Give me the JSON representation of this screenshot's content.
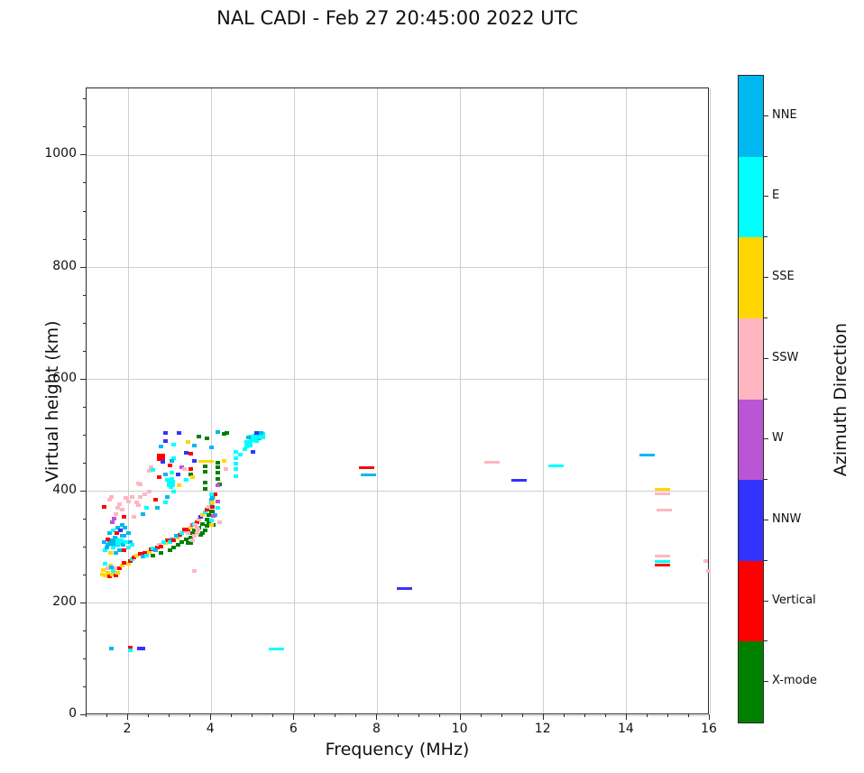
{
  "title": "NAL CADI - Feb 27 20:45:00 2022 UTC",
  "chart_data": {
    "type": "scatter",
    "title": "NAL CADI - Feb 27 20:45:00 2022 UTC",
    "xlabel": "Frequency (MHz)",
    "ylabel": "Virtual height (km)",
    "xlim": [
      1,
      16
    ],
    "ylim": [
      0,
      1120
    ],
    "xticks": [
      2,
      4,
      6,
      8,
      10,
      12,
      14,
      16
    ],
    "yticks": [
      0,
      200,
      400,
      600,
      800,
      1000
    ],
    "x_minor_step": 0.5,
    "y_minor_step": 50,
    "grid": true,
    "legend_position": "right-colorbar",
    "colorbar": {
      "label": "Azimuth Direction",
      "segments": [
        {
          "label": "NNE",
          "color": "#00B8F0"
        },
        {
          "label": "E",
          "color": "#00FFFF"
        },
        {
          "label": "SSE",
          "color": "#FFD700"
        },
        {
          "label": "SSW",
          "color": "#FFB6C1"
        },
        {
          "label": "W",
          "color": "#BA55D3"
        },
        {
          "label": "NNW",
          "color": "#3333FF"
        },
        {
          "label": "Vertical",
          "color": "#FF0000"
        },
        {
          "label": "X-mode",
          "color": "#008000"
        }
      ]
    },
    "points": [
      [
        1.59,
        119,
        "NNE"
      ],
      [
        2.05,
        121,
        "Vertical"
      ],
      [
        2.05,
        116,
        "E"
      ],
      [
        2.26,
        120,
        "NNW"
      ],
      [
        2.36,
        120,
        "NNW"
      ],
      [
        5.58,
        119,
        "E",
        "w"
      ],
      [
        1.38,
        252,
        "SSE"
      ],
      [
        1.45,
        250,
        "SSE"
      ],
      [
        1.5,
        255,
        "SSE"
      ],
      [
        1.55,
        248,
        "Vertical"
      ],
      [
        1.62,
        252,
        "SSE"
      ],
      [
        1.65,
        258,
        "E"
      ],
      [
        1.5,
        263,
        "SSW"
      ],
      [
        1.57,
        268,
        "SSE"
      ],
      [
        1.7,
        250,
        "Vertical"
      ],
      [
        1.45,
        270,
        "E"
      ],
      [
        1.6,
        265,
        "NNE"
      ],
      [
        1.75,
        255,
        "SSE"
      ],
      [
        1.7,
        262,
        "SSW"
      ],
      [
        1.4,
        260,
        "SSE"
      ],
      [
        1.42,
        310,
        "NNE"
      ],
      [
        1.45,
        295,
        "E"
      ],
      [
        1.48,
        300,
        "NNE"
      ],
      [
        1.52,
        305,
        "NNE"
      ],
      [
        1.55,
        325,
        "NNE"
      ],
      [
        1.57,
        290,
        "SSE"
      ],
      [
        1.6,
        310,
        "NNE",
        "b"
      ],
      [
        1.62,
        345,
        "W"
      ],
      [
        1.65,
        300,
        "E"
      ],
      [
        1.65,
        330,
        "E"
      ],
      [
        1.68,
        318,
        "NNE"
      ],
      [
        1.7,
        290,
        "NNE"
      ],
      [
        1.7,
        315,
        "NNE"
      ],
      [
        1.72,
        325,
        "Vertical"
      ],
      [
        1.75,
        305,
        "NNE"
      ],
      [
        1.75,
        335,
        "NNE"
      ],
      [
        1.8,
        295,
        "NNE"
      ],
      [
        1.8,
        310,
        "E",
        "b"
      ],
      [
        1.82,
        330,
        "NNW"
      ],
      [
        1.85,
        320,
        "NNE"
      ],
      [
        1.85,
        340,
        "NNE"
      ],
      [
        1.88,
        305,
        "NNE"
      ],
      [
        1.9,
        295,
        "Vertical"
      ],
      [
        1.9,
        320,
        "NNE"
      ],
      [
        1.92,
        335,
        "NNE"
      ],
      [
        1.95,
        310,
        "E"
      ],
      [
        2.0,
        300,
        "E"
      ],
      [
        2.0,
        325,
        "NNE"
      ],
      [
        1.5,
        315,
        "Vertical"
      ],
      [
        2.05,
        310,
        "NNE"
      ],
      [
        2.1,
        305,
        "E"
      ],
      [
        1.43,
        372,
        "Vertical"
      ],
      [
        1.55,
        385,
        "SSW"
      ],
      [
        1.6,
        390,
        "SSW"
      ],
      [
        1.75,
        370,
        "SSW"
      ],
      [
        1.8,
        377,
        "SSW"
      ],
      [
        1.85,
        368,
        "SSW"
      ],
      [
        1.7,
        360,
        "SSW"
      ],
      [
        1.66,
        352,
        "W"
      ],
      [
        1.9,
        355,
        "Vertical"
      ],
      [
        1.95,
        388,
        "SSW"
      ],
      [
        2.0,
        382,
        "SSW"
      ],
      [
        1.8,
        262,
        "Vertical"
      ],
      [
        1.85,
        268,
        "SSE"
      ],
      [
        1.9,
        272,
        "Vertical"
      ],
      [
        2.0,
        270,
        "SSE"
      ],
      [
        2.05,
        276,
        "Vertical"
      ],
      [
        2.1,
        278,
        "E"
      ],
      [
        2.15,
        282,
        "Vertical"
      ],
      [
        2.2,
        285,
        "SSE"
      ],
      [
        2.3,
        288,
        "Vertical"
      ],
      [
        2.35,
        284,
        "NNE"
      ],
      [
        2.4,
        290,
        "Vertical"
      ],
      [
        2.5,
        292,
        "SSE"
      ],
      [
        2.55,
        296,
        "Vertical"
      ],
      [
        2.6,
        298,
        "E"
      ],
      [
        2.7,
        300,
        "Vertical"
      ],
      [
        2.75,
        305,
        "SSW"
      ],
      [
        2.8,
        302,
        "Vertical"
      ],
      [
        2.9,
        308,
        "SSE"
      ],
      [
        2.95,
        312,
        "Vertical"
      ],
      [
        3.0,
        310,
        "E"
      ],
      [
        3.05,
        315,
        "NNE"
      ],
      [
        3.1,
        312,
        "Vertical"
      ],
      [
        3.2,
        318,
        "SSE"
      ],
      [
        3.25,
        322,
        "Vertical"
      ],
      [
        3.3,
        325,
        "E"
      ],
      [
        3.4,
        328,
        "SSW"
      ],
      [
        3.45,
        332,
        "Vertical"
      ],
      [
        3.5,
        335,
        "SSE"
      ],
      [
        3.55,
        340,
        "W"
      ],
      [
        3.6,
        342,
        "E"
      ],
      [
        3.65,
        345,
        "Vertical"
      ],
      [
        3.7,
        350,
        "SSW"
      ],
      [
        3.75,
        355,
        "NNW"
      ],
      [
        3.8,
        358,
        "SSE"
      ],
      [
        3.85,
        362,
        "E"
      ],
      [
        3.9,
        368,
        "Vertical"
      ],
      [
        3.95,
        372,
        "SSW"
      ],
      [
        4.0,
        378,
        "E"
      ],
      [
        4.0,
        385,
        "NNE"
      ],
      [
        4.05,
        390,
        "SSE"
      ],
      [
        4.1,
        395,
        "Vertical"
      ],
      [
        4.1,
        358,
        "NNE"
      ],
      [
        4.15,
        382,
        "W"
      ],
      [
        4.15,
        370,
        "E"
      ],
      [
        4.2,
        345,
        "SSW"
      ],
      [
        2.45,
        285,
        "E"
      ],
      [
        2.65,
        295,
        "NNE"
      ],
      [
        2.85,
        310,
        "E"
      ],
      [
        3.15,
        320,
        "NNE"
      ],
      [
        3.35,
        332,
        "Vertical"
      ],
      [
        2.6,
        285,
        "X-mode"
      ],
      [
        2.8,
        290,
        "X-mode"
      ],
      [
        3.0,
        295,
        "X-mode"
      ],
      [
        3.1,
        300,
        "X-mode"
      ],
      [
        3.2,
        305,
        "X-mode"
      ],
      [
        3.3,
        310,
        "X-mode"
      ],
      [
        3.45,
        308,
        "X-mode"
      ],
      [
        3.4,
        315,
        "X-mode"
      ],
      [
        3.5,
        318,
        "X-mode"
      ],
      [
        3.55,
        325,
        "X-mode"
      ],
      [
        3.6,
        330,
        "X-mode"
      ],
      [
        3.7,
        335,
        "X-mode"
      ],
      [
        3.75,
        322,
        "X-mode"
      ],
      [
        3.8,
        342,
        "X-mode"
      ],
      [
        3.85,
        330,
        "X-mode"
      ],
      [
        3.9,
        350,
        "X-mode"
      ],
      [
        3.95,
        358,
        "X-mode"
      ],
      [
        4.0,
        365,
        "X-mode"
      ],
      [
        4.05,
        340,
        "X-mode"
      ],
      [
        3.5,
        308,
        "X-mode"
      ],
      [
        3.9,
        338,
        "X-mode"
      ],
      [
        3.8,
        326,
        "X-mode"
      ],
      [
        3.95,
        345,
        "X-mode"
      ],
      [
        3.65,
        335,
        "SSW"
      ],
      [
        3.65,
        325,
        "SSW"
      ],
      [
        3.6,
        320,
        "SSW"
      ],
      [
        3.45,
        326,
        "SSW"
      ],
      [
        3.6,
        258,
        "SSW"
      ],
      [
        3.55,
        312,
        "SSW"
      ],
      [
        2.2,
        380,
        "SSW"
      ],
      [
        2.25,
        375,
        "SSW"
      ],
      [
        2.3,
        390,
        "SSW"
      ],
      [
        2.4,
        395,
        "SSW"
      ],
      [
        2.5,
        400,
        "SSW"
      ],
      [
        2.5,
        437,
        "SSW"
      ],
      [
        2.55,
        443,
        "SSW"
      ],
      [
        2.6,
        439,
        "E"
      ],
      [
        2.24,
        414,
        "SSW"
      ],
      [
        2.3,
        412,
        "SSW"
      ],
      [
        2.75,
        426,
        "Vertical"
      ],
      [
        2.8,
        461,
        "Vertical",
        "b"
      ],
      [
        2.83,
        453,
        "NNW"
      ],
      [
        3.0,
        447,
        "Vertical"
      ],
      [
        3.03,
        407,
        "E"
      ],
      [
        3.03,
        414,
        "E",
        "b"
      ],
      [
        3.05,
        434,
        "E"
      ],
      [
        3.05,
        422,
        "E"
      ],
      [
        3.1,
        400,
        "E"
      ],
      [
        3.23,
        411,
        "SSE"
      ],
      [
        3.3,
        443,
        "W"
      ],
      [
        3.35,
        440,
        "SSW"
      ],
      [
        3.2,
        430,
        "NNW"
      ],
      [
        3.4,
        420,
        "E"
      ],
      [
        3.5,
        430,
        "X-mode"
      ],
      [
        3.5,
        440,
        "Vertical"
      ],
      [
        3.55,
        425,
        "SSE"
      ],
      [
        2.9,
        380,
        "E"
      ],
      [
        2.95,
        390,
        "NNE"
      ],
      [
        2.7,
        370,
        "NNE"
      ],
      [
        2.65,
        385,
        "Vertical"
      ],
      [
        2.45,
        370,
        "E"
      ],
      [
        2.35,
        360,
        "NNE"
      ],
      [
        2.15,
        355,
        "SSW"
      ],
      [
        2.1,
        390,
        "SSW"
      ],
      [
        2.9,
        430,
        "NNE"
      ],
      [
        2.95,
        420,
        "E"
      ],
      [
        2.9,
        505,
        "NNW"
      ],
      [
        3.23,
        505,
        "NNW"
      ],
      [
        2.9,
        490,
        "NNW"
      ],
      [
        3.1,
        484,
        "E"
      ],
      [
        3.45,
        489,
        "SSE"
      ],
      [
        3.4,
        469,
        "NNW"
      ],
      [
        3.6,
        482,
        "NNE"
      ],
      [
        3.7,
        498,
        "X-mode"
      ],
      [
        3.9,
        495,
        "X-mode"
      ],
      [
        4.15,
        506,
        "NNE"
      ],
      [
        4.3,
        503,
        "X-mode"
      ],
      [
        4.38,
        505,
        "X-mode"
      ],
      [
        4.0,
        478,
        "NNE"
      ],
      [
        4.6,
        470,
        "E"
      ],
      [
        4.6,
        460,
        "E"
      ],
      [
        4.6,
        450,
        "E"
      ],
      [
        5.0,
        471,
        "NNW"
      ],
      [
        4.85,
        480,
        "E"
      ],
      [
        4.9,
        485,
        "E",
        "b"
      ],
      [
        5.0,
        495,
        "E",
        "b"
      ],
      [
        5.05,
        500,
        "E"
      ],
      [
        5.1,
        490,
        "E"
      ],
      [
        5.15,
        495,
        "NNE"
      ],
      [
        5.2,
        500,
        "E",
        "b"
      ],
      [
        5.2,
        505,
        "NNE"
      ],
      [
        5.1,
        505,
        "NNW"
      ],
      [
        4.9,
        497,
        "NNE"
      ],
      [
        4.8,
        475,
        "E"
      ],
      [
        4.7,
        465,
        "E"
      ],
      [
        3.88,
        453,
        "SSE",
        "w"
      ],
      [
        4.3,
        455,
        "SSE"
      ],
      [
        4.36,
        440,
        "SSW"
      ],
      [
        4.6,
        440,
        "E"
      ],
      [
        4.6,
        427,
        "E"
      ],
      [
        4.15,
        452,
        "X-mode"
      ],
      [
        4.15,
        443,
        "X-mode"
      ],
      [
        4.15,
        433,
        "X-mode"
      ],
      [
        4.15,
        422,
        "X-mode"
      ],
      [
        4.2,
        412,
        "X-mode"
      ],
      [
        3.85,
        445,
        "X-mode"
      ],
      [
        3.85,
        435,
        "X-mode"
      ],
      [
        3.85,
        415,
        "X-mode"
      ],
      [
        3.85,
        405,
        "X-mode"
      ],
      [
        4.15,
        411,
        "W"
      ],
      [
        3.6,
        455,
        "NNW"
      ],
      [
        3.5,
        468,
        "Vertical"
      ],
      [
        3.1,
        460,
        "E"
      ],
      [
        3.05,
        455,
        "NNE"
      ],
      [
        2.8,
        480,
        "NNE"
      ],
      [
        4.0,
        395,
        "E"
      ],
      [
        4.02,
        388,
        "NNE"
      ],
      [
        4.02,
        380,
        "SSE"
      ],
      [
        4.02,
        372,
        "Vertical"
      ],
      [
        4.02,
        364,
        "X-mode"
      ],
      [
        4.05,
        356,
        "W"
      ],
      [
        4.0,
        348,
        "E"
      ],
      [
        4.0,
        340,
        "SSE"
      ],
      [
        3.62,
        340,
        "SSW"
      ],
      [
        3.68,
        332,
        "SSW"
      ],
      [
        7.75,
        443,
        "Vertical",
        "w"
      ],
      [
        7.78,
        430,
        "NNE",
        "w"
      ],
      [
        8.65,
        227,
        "NNW",
        "w"
      ],
      [
        10.75,
        452,
        "SSW",
        "w"
      ],
      [
        11.4,
        419,
        "NNW",
        "w"
      ],
      [
        12.3,
        445,
        "E",
        "w"
      ],
      [
        14.5,
        465,
        "NNE",
        "w"
      ],
      [
        14.85,
        403,
        "SSE",
        "w"
      ],
      [
        14.85,
        395,
        "SSW",
        "w"
      ],
      [
        14.9,
        366,
        "SSW",
        "w"
      ],
      [
        14.85,
        284,
        "SSW",
        "w"
      ],
      [
        14.85,
        274,
        "E",
        "w"
      ],
      [
        14.87,
        269,
        "Vertical",
        "w"
      ],
      [
        15.9,
        276,
        "SSW"
      ],
      [
        15.97,
        258,
        "SSW"
      ]
    ]
  }
}
